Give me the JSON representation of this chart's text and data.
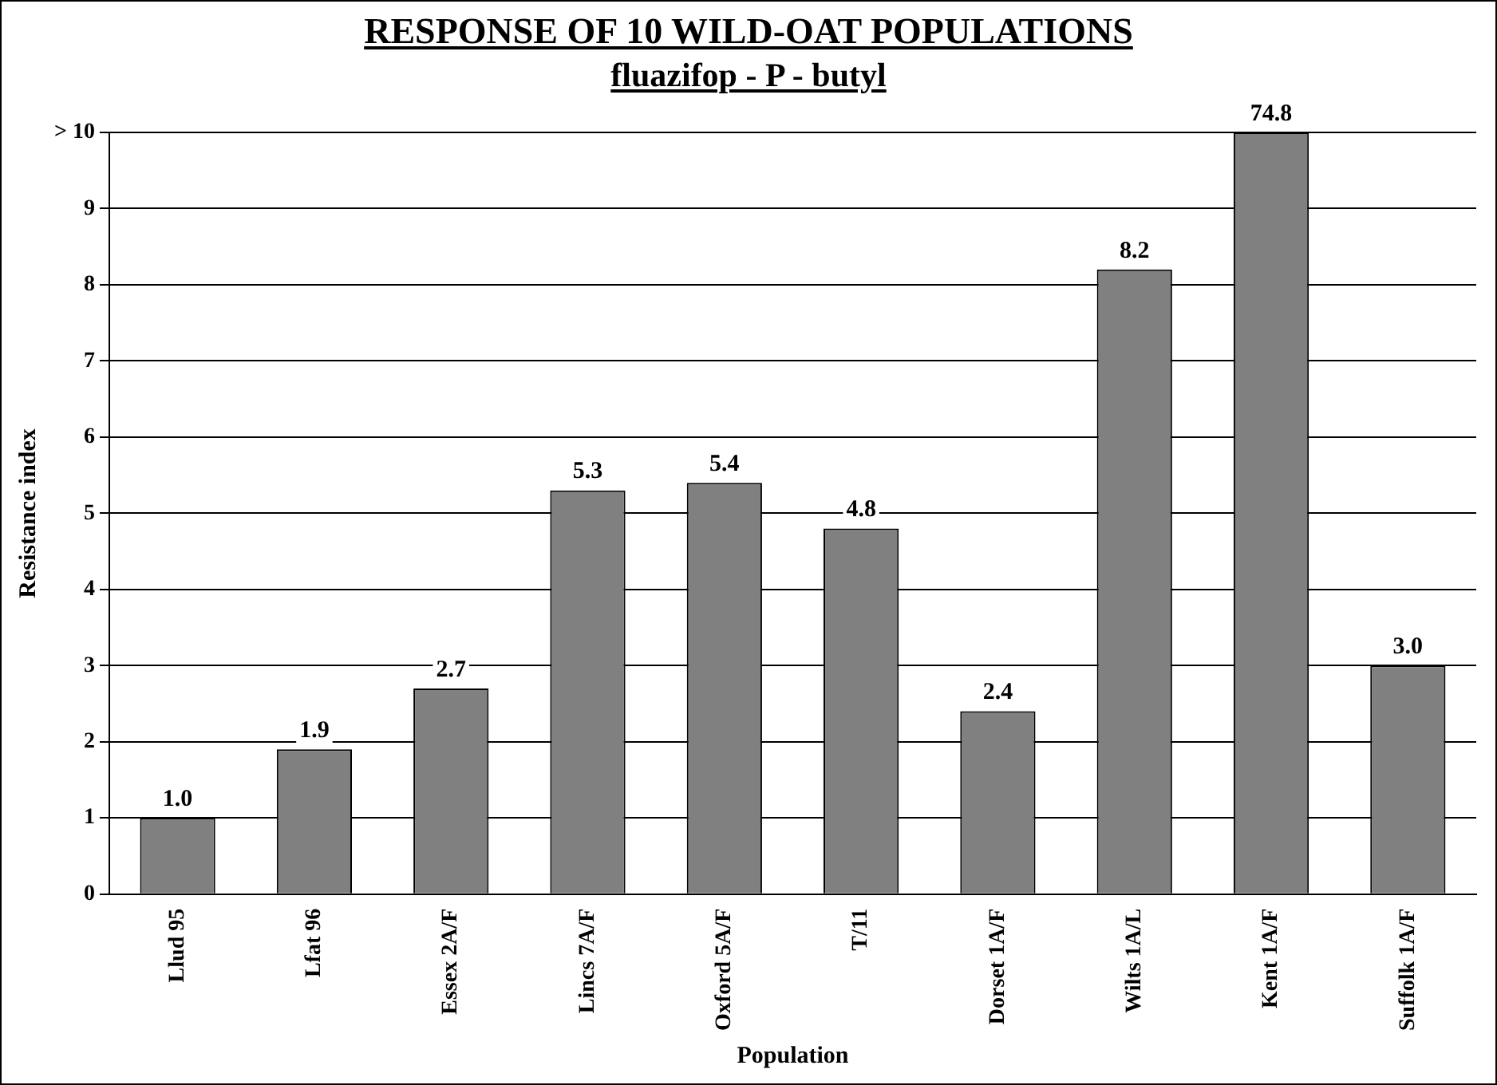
{
  "chart_data": {
    "type": "bar",
    "title": "RESPONSE OF 10 WILD-OAT POPULATIONS",
    "subtitle": "fluazifop - P - butyl",
    "xlabel": "Population",
    "ylabel": "Resistance index",
    "categories": [
      "Llud 95",
      "Lfat 96",
      "Essex 2A/F",
      "Lincs 7A/F",
      "Oxford 5A/F",
      "T/11",
      "Dorset 1A/F",
      "Wilts 1A/L",
      "Kent 1A/F",
      "Suffolk 1A/F"
    ],
    "values": [
      1.0,
      1.9,
      2.7,
      5.3,
      5.4,
      4.8,
      2.4,
      8.2,
      10,
      3.0
    ],
    "value_labels": [
      "1.0",
      "1.9",
      "2.7",
      "5.3",
      "5.4",
      "4.8",
      "2.4",
      "8.2",
      null,
      "3.0"
    ],
    "annotations": [
      {
        "text": "74.8",
        "x": "Kent 1A/F",
        "y": 10
      }
    ],
    "color": "#808080",
    "ylim": [
      0,
      10
    ],
    "yticks": [
      0,
      1,
      2,
      3,
      4,
      5,
      6,
      7,
      8,
      9,
      {
        "value": 10,
        "label": "> 10"
      }
    ],
    "grid": "y",
    "legend": false
  }
}
